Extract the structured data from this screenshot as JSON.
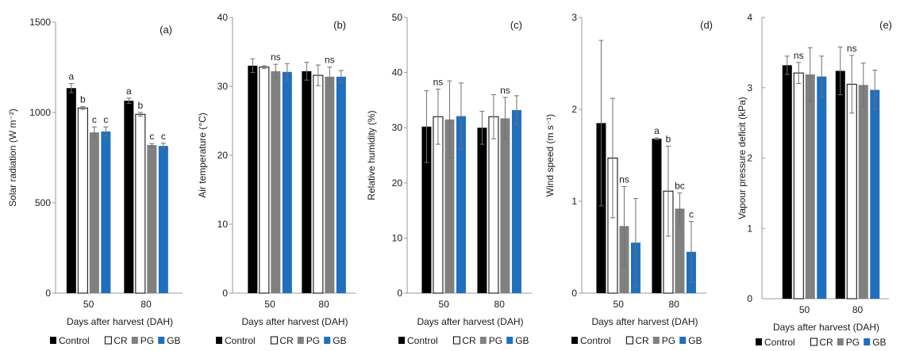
{
  "colors": {
    "Control": "#000000",
    "CR": "#ffffff",
    "PG": "#808080",
    "GB": "#1f6fbf",
    "axis": "#9a9a9a",
    "error": "#707070"
  },
  "chart_data": [
    {
      "type": "bar",
      "panel": "(a)",
      "ylabel": "Solar radiation (W m⁻²)",
      "xlabel": "Days after harvest (DAH)",
      "ylim": [
        0,
        1500
      ],
      "yticks": [
        0,
        500,
        1000,
        1500
      ],
      "categories": [
        "50",
        "80"
      ],
      "series": [
        {
          "name": "Control",
          "values": [
            1135,
            1065
          ],
          "errors": [
            25,
            15
          ]
        },
        {
          "name": "CR",
          "values": [
            1025,
            990
          ],
          "errors": [
            8,
            10
          ]
        },
        {
          "name": "PG",
          "values": [
            890,
            820
          ],
          "errors": [
            30,
            8
          ]
        },
        {
          "name": "GB",
          "values": [
            895,
            815
          ],
          "errors": [
            25,
            15
          ]
        }
      ],
      "annotations": [
        [
          "a",
          "b",
          "c",
          "c"
        ],
        [
          "a",
          "b",
          "c",
          "c"
        ]
      ],
      "grid": false,
      "legend": "bottom"
    },
    {
      "type": "bar",
      "panel": "(b)",
      "ylabel": "Air temperature (°C)",
      "xlabel": "Days after harvest (DAH)",
      "ylim": [
        0,
        40
      ],
      "yticks": [
        0,
        10,
        20,
        30,
        40
      ],
      "categories": [
        "50",
        "80"
      ],
      "series": [
        {
          "name": "Control",
          "values": [
            33.0,
            32.2
          ],
          "errors": [
            1.0,
            1.3
          ]
        },
        {
          "name": "CR",
          "values": [
            32.8,
            31.6
          ],
          "errors": [
            0.2,
            1.5
          ]
        },
        {
          "name": "PG",
          "values": [
            32.2,
            31.4
          ],
          "errors": [
            1.0,
            1.4
          ]
        },
        {
          "name": "GB",
          "values": [
            32.1,
            31.4
          ],
          "errors": [
            1.2,
            0.9
          ]
        }
      ],
      "annotations": [
        [
          "",
          "",
          "ns",
          ""
        ],
        [
          "",
          "",
          "ns",
          ""
        ]
      ],
      "grid": false,
      "legend": "bottom"
    },
    {
      "type": "bar",
      "panel": "(c)",
      "ylabel": "Relative humidity (%)",
      "xlabel": "Days after harvest (DAH)",
      "ylim": [
        0,
        50
      ],
      "yticks": [
        0,
        10,
        20,
        30,
        40,
        50
      ],
      "categories": [
        "50",
        "80"
      ],
      "series": [
        {
          "name": "Control",
          "values": [
            30.2,
            30.0
          ],
          "errors": [
            6.5,
            3.0
          ]
        },
        {
          "name": "CR",
          "values": [
            32.0,
            32.0
          ],
          "errors": [
            5.0,
            4.0
          ]
        },
        {
          "name": "PG",
          "values": [
            31.5,
            31.7
          ],
          "errors": [
            7.0,
            3.8
          ]
        },
        {
          "name": "GB",
          "values": [
            32.1,
            33.2
          ],
          "errors": [
            6.0,
            2.6
          ]
        }
      ],
      "annotations": [
        [
          "",
          "ns",
          "",
          ""
        ],
        [
          "",
          "",
          "ns",
          ""
        ]
      ],
      "grid": false,
      "legend": "bottom"
    },
    {
      "type": "bar",
      "panel": "(d)",
      "ylabel": "Wind speed (m s⁻¹)",
      "xlabel": "Days after harvest (DAH)",
      "ylim": [
        0,
        3
      ],
      "yticks": [
        0,
        1,
        2,
        3
      ],
      "categories": [
        "50",
        "80"
      ],
      "series": [
        {
          "name": "Control",
          "values": [
            1.85,
            1.68
          ],
          "errors": [
            0.9,
            0.01
          ]
        },
        {
          "name": "CR",
          "values": [
            1.47,
            1.11
          ],
          "errors": [
            0.65,
            0.49
          ]
        },
        {
          "name": "PG",
          "values": [
            0.73,
            0.92
          ],
          "errors": [
            0.43,
            0.17
          ]
        },
        {
          "name": "GB",
          "values": [
            0.55,
            0.45
          ],
          "errors": [
            0.48,
            0.33
          ]
        }
      ],
      "annotations": [
        [
          "",
          "",
          "ns",
          ""
        ],
        [
          "a",
          "b",
          "bc",
          "c"
        ]
      ],
      "grid": false,
      "legend": "bottom"
    },
    {
      "type": "bar",
      "panel": "(e)",
      "ylabel": "Vapour pressure deficit (kPa)",
      "xlabel": "Days after harvest (DAH)",
      "ylim": [
        0,
        4
      ],
      "yticks": [
        0,
        1,
        2,
        3,
        4
      ],
      "categories": [
        "50",
        "80"
      ],
      "series": [
        {
          "name": "Control",
          "values": [
            3.32,
            3.24
          ],
          "errors": [
            0.13,
            0.34
          ]
        },
        {
          "name": "CR",
          "values": [
            3.21,
            3.05
          ],
          "errors": [
            0.15,
            0.41
          ]
        },
        {
          "name": "PG",
          "values": [
            3.19,
            3.04
          ],
          "errors": [
            0.38,
            0.31
          ]
        },
        {
          "name": "GB",
          "values": [
            3.16,
            2.97
          ],
          "errors": [
            0.29,
            0.28
          ]
        }
      ],
      "annotations": [
        [
          "",
          "ns",
          "",
          ""
        ],
        [
          "",
          "ns",
          "",
          ""
        ]
      ],
      "grid": false,
      "legend": "bottom"
    }
  ]
}
